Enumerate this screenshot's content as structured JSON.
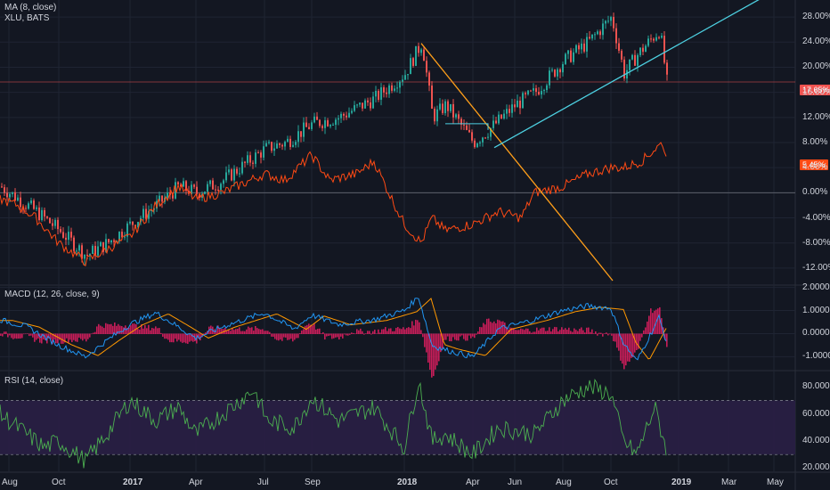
{
  "legends": {
    "main_line1": "MA (8, close)",
    "main_line2": "XLU, BATS",
    "macd": "MACD (12, 26, close, 9)",
    "rsi": "RSI (14, close)"
  },
  "price_tags": {
    "xlu": "17.65%",
    "ma": "5.45%"
  },
  "colors": {
    "background": "#131722",
    "grid": "#1f2433",
    "candle_up": "#26a69a",
    "candle_down": "#ef5350",
    "ma_line": "#ff4a14",
    "trend_orange": "#ff9f1a",
    "trend_cyan": "#4dd0e1",
    "macd_line": "#2196f3",
    "signal_line": "#ff9800",
    "histogram": "#e91e63",
    "rsi_line": "#4caf50",
    "rsi_band": "#2a1f45",
    "price_tag_xlu": "#ef5350",
    "price_tag_ma": "#ff4a14"
  },
  "x_axis": {
    "labels": [
      "Aug",
      "Oct",
      "2017",
      "Apr",
      "Jul",
      "Sep",
      "2018",
      "Apr",
      "Jun",
      "Aug",
      "Oct",
      "2019",
      "Mar",
      "May"
    ],
    "bold": [
      "2017",
      "2018",
      "2019"
    ]
  },
  "chart_data": [
    {
      "type": "candlestick",
      "pane": "main",
      "y_unit": "%",
      "yticks": [
        "28.00%",
        "24.00%",
        "20.00%",
        "16.00%",
        "12.00%",
        "8.00%",
        "4.00%",
        "0.00%",
        "-4.00%",
        "-8.00%",
        "-12.00%"
      ],
      "ylim": [
        -14,
        30
      ],
      "series": [
        {
          "name": "XLU, BATS",
          "kind": "candles",
          "x": [
            "Aug",
            "Oct",
            "2017",
            "Apr",
            "Jul",
            "Sep",
            "2018",
            "Apr",
            "Jun",
            "Aug",
            "Oct",
            "2019"
          ],
          "values": [
            1,
            -10,
            -5,
            1,
            7,
            11,
            23,
            8,
            11,
            22,
            28,
            17.65
          ]
        },
        {
          "name": "MA (8, close)",
          "kind": "line",
          "x": [
            "Aug",
            "Oct",
            "2017",
            "Apr",
            "Jul",
            "Sep",
            "2018",
            "Apr",
            "Jun",
            "Aug",
            "Oct",
            "2019"
          ],
          "values": [
            0,
            -9,
            -7,
            0,
            4,
            6,
            -3,
            -5,
            1,
            2,
            5,
            5.45
          ]
        }
      ],
      "annotations": [
        "orange descending trendline",
        "cyan ascending trendline",
        "flat segment near 11%"
      ]
    },
    {
      "type": "macd",
      "pane": "macd",
      "yticks": [
        "2.0000",
        "1.0000",
        "0.0000",
        "-1.0000"
      ],
      "ylim": [
        -1.6,
        2.1
      ],
      "params": "12, 26, close, 9"
    },
    {
      "type": "line",
      "pane": "rsi",
      "yticks": [
        "80.0000",
        "60.0000",
        "40.0000",
        "20.0000"
      ],
      "ylim": [
        17,
        92
      ],
      "bands": [
        30,
        70
      ],
      "params": "14, close"
    }
  ]
}
